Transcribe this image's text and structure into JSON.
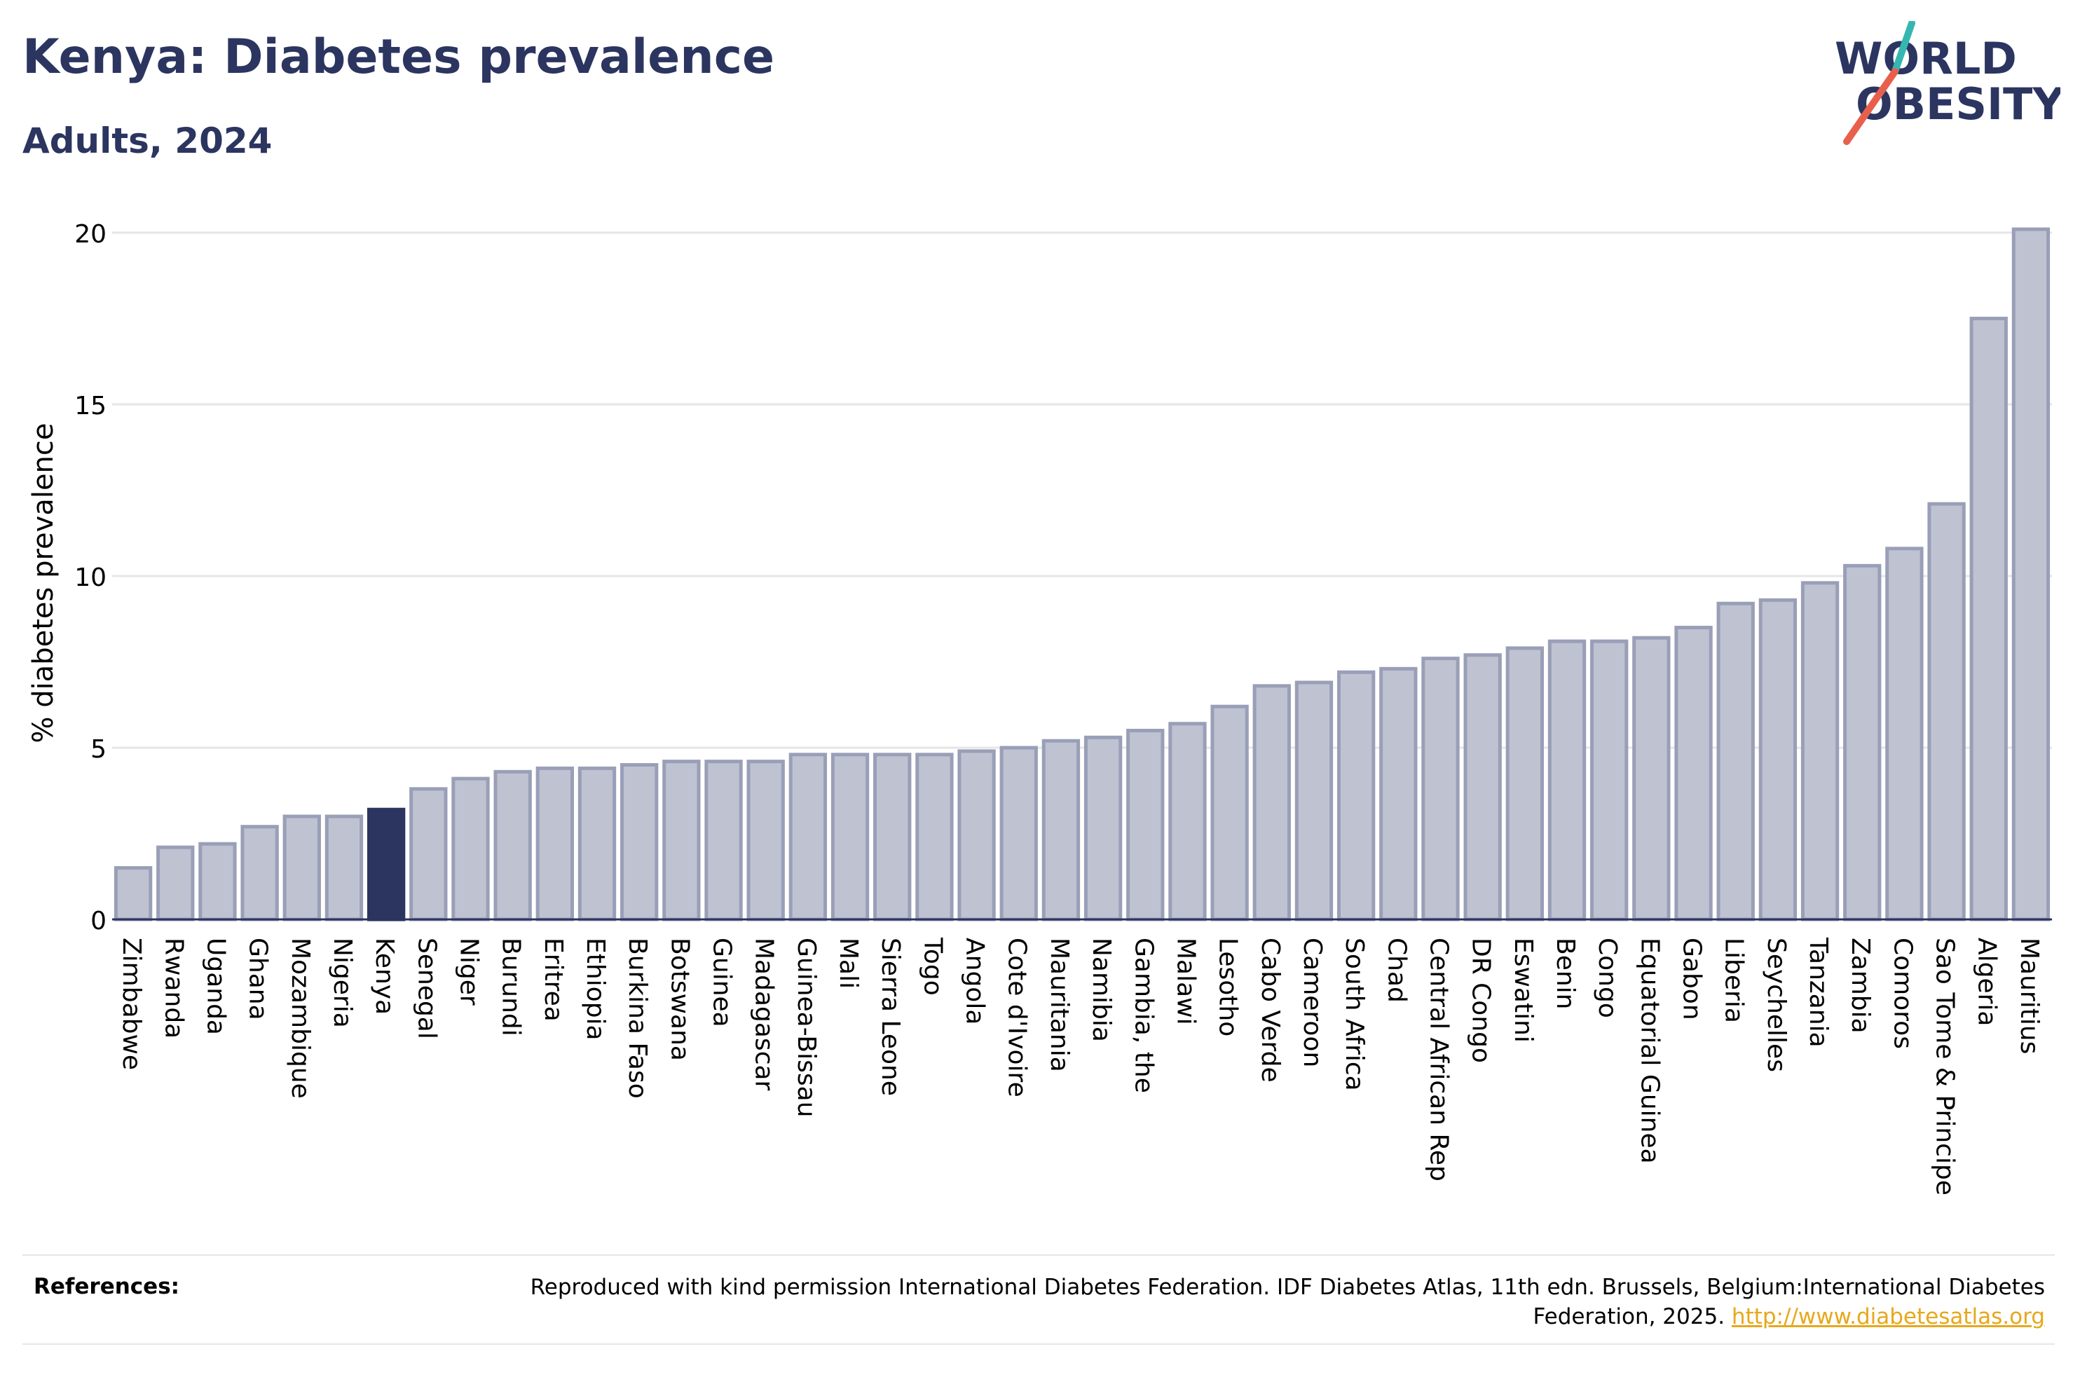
{
  "header": {
    "title": "Kenya: Diabetes prevalence",
    "subtitle": "Adults, 2024"
  },
  "logo": {
    "line1": "WORLD",
    "line2": "OBESITY",
    "text_color": "#2b3560",
    "slash_top_color": "#35b7b0",
    "slash_bottom_color": "#e8604c"
  },
  "chart_data": {
    "type": "bar",
    "ylabel": "% diabetes prevalence",
    "ylim": [
      0,
      20
    ],
    "yticks": [
      0,
      5,
      10,
      15,
      20
    ],
    "grid": true,
    "highlight": "Kenya",
    "colors": {
      "bar": "#bfc2d1",
      "bar_edge": "#9a9fb8",
      "highlight": "#2b3560"
    },
    "categories": [
      "Zimbabwe",
      "Rwanda",
      "Uganda",
      "Ghana",
      "Mozambique",
      "Nigeria",
      "Kenya",
      "Senegal",
      "Niger",
      "Burundi",
      "Eritrea",
      "Ethiopia",
      "Burkina Faso",
      "Botswana",
      "Guinea",
      "Madagascar",
      "Guinea-Bissau",
      "Mali",
      "Sierra Leone",
      "Togo",
      "Angola",
      "Cote d'Ivoire",
      "Mauritania",
      "Namibia",
      "Gambia, the",
      "Malawi",
      "Lesotho",
      "Cabo Verde",
      "Cameroon",
      "South Africa",
      "Chad",
      "Central African Rep",
      "DR Congo",
      "Eswatini",
      "Benin",
      "Congo",
      "Equatorial Guinea",
      "Gabon",
      "Liberia",
      "Seychelles",
      "Tanzania",
      "Zambia",
      "Comoros",
      "Sao Tome & Principe",
      "Algeria",
      "Mauritius"
    ],
    "values": [
      1.5,
      2.1,
      2.2,
      2.7,
      3.0,
      3.0,
      3.2,
      3.8,
      4.1,
      4.3,
      4.4,
      4.4,
      4.5,
      4.6,
      4.6,
      4.6,
      4.8,
      4.8,
      4.8,
      4.8,
      4.9,
      5.0,
      5.2,
      5.3,
      5.5,
      5.7,
      6.2,
      6.8,
      6.9,
      7.2,
      7.3,
      7.6,
      7.7,
      7.9,
      8.1,
      8.1,
      8.2,
      8.5,
      9.2,
      9.3,
      9.8,
      10.3,
      10.8,
      12.1,
      17.5,
      20.1
    ]
  },
  "references": {
    "label": "References:",
    "text": "Reproduced with kind permission International Diabetes Federation. IDF Diabetes Atlas, 11th edn. Brussels, Belgium:International Diabetes Federation, 2025.",
    "link": "http://www.diabetesatlas.org"
  }
}
